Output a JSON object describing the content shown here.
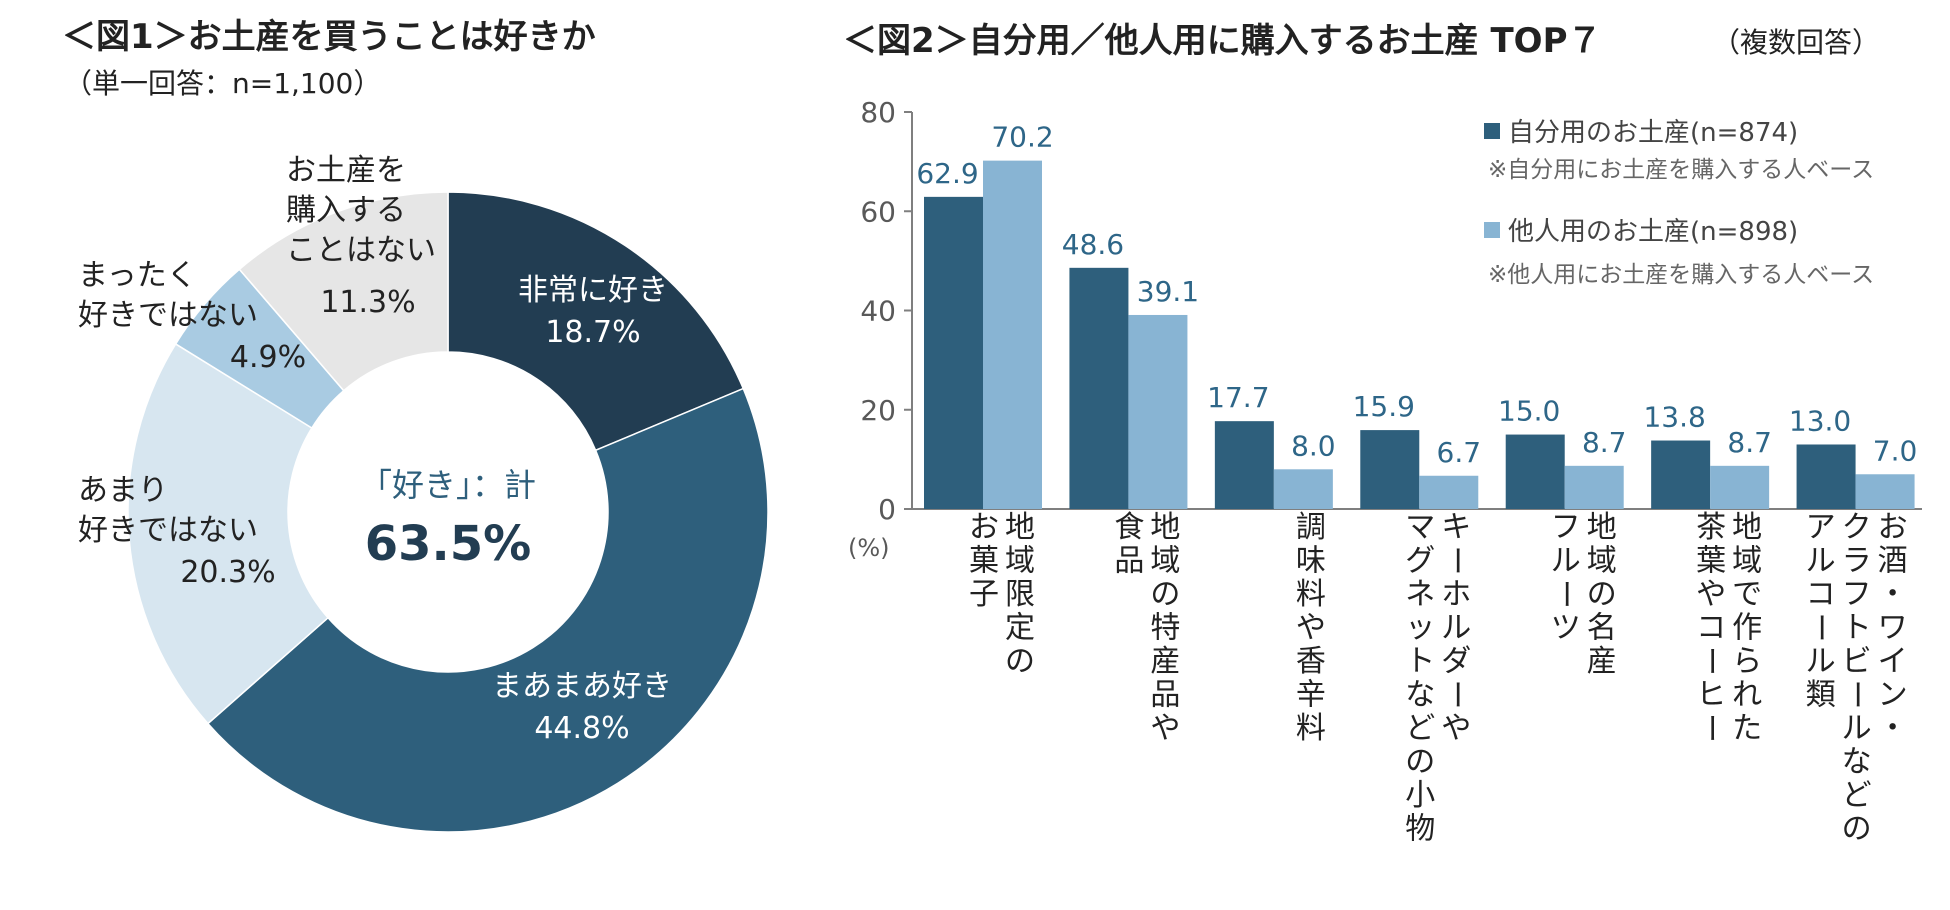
{
  "colors": {
    "dark_navy": "#223d52",
    "mid_navy": "#2e5f7c",
    "pale_blue": "#d7e6f0",
    "light_blue": "#a9cbe2",
    "light_gray": "#e6e6e6",
    "own_bar": "#2e5f7c",
    "other_bar": "#88b4d3",
    "value_label": "#2e6688",
    "axis_text": "#595959"
  },
  "chart_data": [
    {
      "type": "pie",
      "title": "＜図1＞お土産を買うことは好きか",
      "subtitle": "（単一回答：n=1,100）",
      "slices": [
        {
          "label": [
            "非常に好き"
          ],
          "value": 18.7,
          "value_label": "18.7%",
          "color": "#223d52",
          "text_color": "#ffffff"
        },
        {
          "label": [
            "まあまあ好き"
          ],
          "value": 44.8,
          "value_label": "44.8%",
          "color": "#2e5f7c",
          "text_color": "#ffffff"
        },
        {
          "label": [
            "あまり",
            "好きではない"
          ],
          "value": 20.3,
          "value_label": "20.3%",
          "color": "#d7e6f0",
          "text_color": "#222222"
        },
        {
          "label": [
            "まったく",
            "好きではない"
          ],
          "value": 4.9,
          "value_label": "4.9%",
          "color": "#a9cbe2",
          "text_color": "#222222"
        },
        {
          "label": [
            "お土産を",
            "購入する",
            "ことはない"
          ],
          "value": 11.3,
          "value_label": "11.3%",
          "color": "#e6e6e6",
          "text_color": "#222222"
        }
      ],
      "center_label": "「好き」：計",
      "center_value": "63.5%"
    },
    {
      "type": "bar",
      "title": "＜図2＞自分用／他人用に購入するお土産 TOP７",
      "title_note": "（複数回答）",
      "ylabel": "(%)",
      "ylim": [
        0,
        80
      ],
      "yticks": [
        0,
        20,
        40,
        60,
        80
      ],
      "categories": [
        [
          "地域限定の",
          "お菓子"
        ],
        [
          "地域の特産品や",
          "食品"
        ],
        [
          "調味料や香辛料"
        ],
        [
          "キーホルダーや",
          "マグネットなどの小物"
        ],
        [
          "地域の名産",
          "フルーツ"
        ],
        [
          "地域で作られた",
          "茶葉やコーヒー"
        ],
        [
          "お酒・ワイン・",
          "クラフトビールなどの",
          "アルコール類"
        ]
      ],
      "series": [
        {
          "name": "自分用のお土産(n=874)",
          "note": "※自分用にお土産を購入する人ベース",
          "color": "#2e5f7c",
          "values": [
            62.9,
            48.6,
            17.7,
            15.9,
            15.0,
            13.8,
            13.0
          ],
          "labels": [
            "62.9",
            "48.6",
            "17.7",
            "15.9",
            "15.0",
            "13.8",
            "13.0"
          ]
        },
        {
          "name": "他人用のお土産(n=898)",
          "note": "※他人用にお土産を購入する人ベース",
          "color": "#88b4d3",
          "values": [
            70.2,
            39.1,
            8.0,
            6.7,
            8.7,
            8.7,
            7.0
          ],
          "labels": [
            "70.2",
            "39.1",
            "8.0",
            "6.7",
            "8.7",
            "8.7",
            "7.0"
          ]
        }
      ]
    }
  ]
}
